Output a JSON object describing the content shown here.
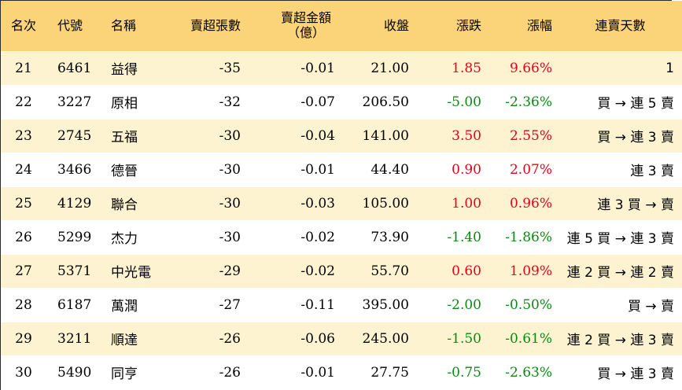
{
  "headers": {
    "rank": "名次",
    "code": "代號",
    "name": "名稱",
    "net_sell_lots": "賣超張數",
    "net_sell_amount_line1": "賣超金額",
    "net_sell_amount_line2": "（億）",
    "close": "收盤",
    "change": "漲跌",
    "change_pct": "漲幅",
    "consecutive_days": "連賣天數"
  },
  "rows": [
    {
      "rank": "21",
      "code": "6461",
      "name": "益得",
      "net_sell_lots": "-35",
      "net_sell_amount": "-0.01",
      "close": "21.00",
      "change": "1.85",
      "change_pct": "9.66%",
      "trend": "up",
      "consecutive_days": "1"
    },
    {
      "rank": "22",
      "code": "3227",
      "name": "原相",
      "net_sell_lots": "-32",
      "net_sell_amount": "-0.07",
      "close": "206.50",
      "change": "-5.00",
      "change_pct": "-2.36%",
      "trend": "down",
      "consecutive_days": "買 → 連 5 賣"
    },
    {
      "rank": "23",
      "code": "2745",
      "name": "五福",
      "net_sell_lots": "-30",
      "net_sell_amount": "-0.04",
      "close": "141.00",
      "change": "3.50",
      "change_pct": "2.55%",
      "trend": "up",
      "consecutive_days": "買 → 連 3 賣"
    },
    {
      "rank": "24",
      "code": "3466",
      "name": "德晉",
      "net_sell_lots": "-30",
      "net_sell_amount": "-0.01",
      "close": "44.40",
      "change": "0.90",
      "change_pct": "2.07%",
      "trend": "up",
      "consecutive_days": "連 3 賣"
    },
    {
      "rank": "25",
      "code": "4129",
      "name": "聯合",
      "net_sell_lots": "-30",
      "net_sell_amount": "-0.03",
      "close": "105.00",
      "change": "1.00",
      "change_pct": "0.96%",
      "trend": "up",
      "consecutive_days": "連 3 買 → 賣"
    },
    {
      "rank": "26",
      "code": "5299",
      "name": "杰力",
      "net_sell_lots": "-30",
      "net_sell_amount": "-0.02",
      "close": "73.90",
      "change": "-1.40",
      "change_pct": "-1.86%",
      "trend": "down",
      "consecutive_days": "連 5 買 → 連 3 賣"
    },
    {
      "rank": "27",
      "code": "5371",
      "name": "中光電",
      "net_sell_lots": "-29",
      "net_sell_amount": "-0.02",
      "close": "55.70",
      "change": "0.60",
      "change_pct": "1.09%",
      "trend": "up",
      "consecutive_days": "連 2 買 → 連 2 賣"
    },
    {
      "rank": "28",
      "code": "6187",
      "name": "萬潤",
      "net_sell_lots": "-27",
      "net_sell_amount": "-0.11",
      "close": "395.00",
      "change": "-2.00",
      "change_pct": "-0.50%",
      "trend": "down",
      "consecutive_days": "買 → 賣"
    },
    {
      "rank": "29",
      "code": "3211",
      "name": "順達",
      "net_sell_lots": "-26",
      "net_sell_amount": "-0.06",
      "close": "245.00",
      "change": "-1.50",
      "change_pct": "-0.61%",
      "trend": "down",
      "consecutive_days": "連 2 買 → 連 3 賣"
    },
    {
      "rank": "30",
      "code": "5490",
      "name": "同亨",
      "net_sell_lots": "-26",
      "net_sell_amount": "-0.01",
      "close": "27.75",
      "change": "-0.75",
      "change_pct": "-2.63%",
      "trend": "down",
      "consecutive_days": "買 → 連 3 賣"
    }
  ],
  "colors": {
    "header_bg": "#fbd47a",
    "stripe_bg": "#fdf3d1",
    "up": "#e3001b",
    "down": "#0a8a12"
  }
}
